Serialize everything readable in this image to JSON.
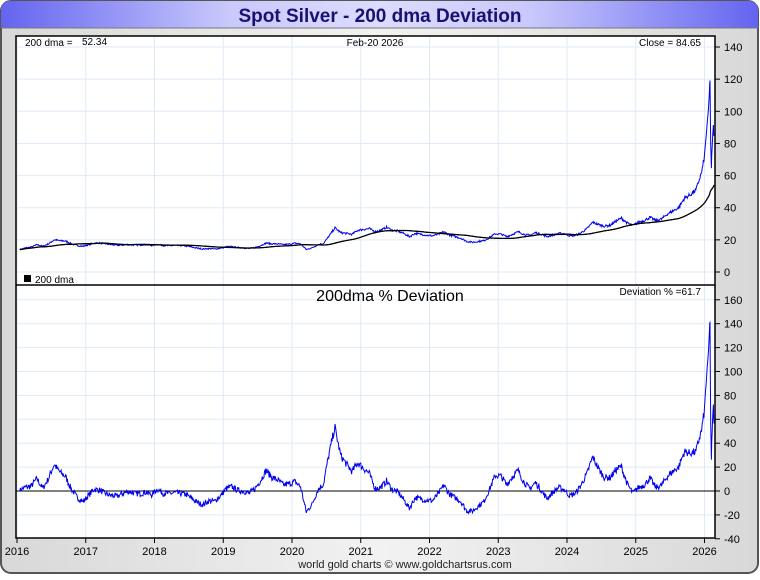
{
  "chart_data": [
    {
      "type": "line",
      "title": "Spot Silver - 200 dma Deviation",
      "header": {
        "dma_label": "200 dma =",
        "dma_value": "52.34",
        "date": "Feb-20  2026",
        "close_label": "Close = 84.65"
      },
      "legend": {
        "label": "200 dma",
        "placement": "bottom-left"
      },
      "ylim": [
        -5,
        147
      ],
      "yticks": [
        "140",
        "120",
        "100",
        "80",
        "60",
        "40",
        "20",
        "0"
      ],
      "ytick_values": [
        140,
        120,
        100,
        80,
        60,
        40,
        20,
        0
      ],
      "grid": true,
      "series": [
        {
          "name": "Spot Silver",
          "color": "#0000ee"
        },
        {
          "name": "200 dma",
          "color": "#000000"
        }
      ],
      "monthly_start_year": 2016,
      "monthly_close": [
        14.0,
        15.0,
        15.5,
        17.0,
        16.0,
        17.5,
        20.0,
        19.5,
        19.2,
        17.5,
        16.5,
        16.0,
        17.0,
        18.0,
        18.0,
        17.5,
        17.0,
        16.6,
        16.8,
        17.0,
        16.8,
        16.8,
        17.0,
        16.5,
        17.2,
        16.5,
        16.4,
        16.5,
        16.4,
        16.2,
        15.5,
        14.8,
        14.3,
        14.6,
        14.3,
        14.8,
        15.6,
        15.8,
        15.2,
        15.0,
        14.6,
        15.2,
        16.4,
        18.0,
        17.5,
        17.5,
        17.0,
        17.3,
        17.9,
        17.5,
        14.0,
        15.0,
        17.0,
        17.8,
        22.5,
        27.5,
        24.5,
        24.0,
        23.5,
        26.0,
        26.5,
        27.0,
        25.0,
        26.0,
        27.8,
        26.0,
        25.5,
        24.0,
        22.0,
        24.0,
        23.5,
        22.8,
        22.5,
        23.5,
        25.0,
        23.0,
        22.0,
        21.0,
        19.0,
        18.5,
        19.0,
        19.5,
        21.5,
        23.8,
        23.5,
        22.0,
        23.5,
        25.0,
        23.5,
        22.8,
        24.5,
        23.5,
        22.0,
        23.0,
        24.0,
        23.8,
        22.5,
        22.8,
        24.5,
        27.0,
        31.0,
        29.5,
        28.5,
        29.0,
        31.5,
        33.5,
        30.5,
        29.0,
        31.0,
        32.0,
        34.0,
        32.0,
        33.0,
        36.0,
        38.0,
        40.0,
        46.0,
        48.0,
        51.0,
        62.0
      ],
      "recent_points": [
        [
          2026.0,
          72
        ],
        [
          2026.03,
          88
        ],
        [
          2026.05,
          95
        ],
        [
          2026.07,
          110
        ],
        [
          2026.08,
          121
        ],
        [
          2026.09,
          80
        ],
        [
          2026.1,
          64
        ],
        [
          2026.11,
          78
        ],
        [
          2026.13,
          90
        ],
        [
          2026.14,
          84.65
        ]
      ]
    },
    {
      "type": "line",
      "title": "200dma  %  Deviation",
      "readout": "Deviation % =61.7",
      "ylim": [
        -40,
        160
      ],
      "yticks": [
        "160",
        "140",
        "120",
        "100",
        "80",
        "60",
        "40",
        "20",
        "0",
        "-20",
        "-40"
      ],
      "ytick_values": [
        160,
        140,
        120,
        100,
        80,
        60,
        40,
        20,
        0,
        -20,
        -40
      ],
      "xticks": [
        "2016",
        "2017",
        "2018",
        "2019",
        "2020",
        "2021",
        "2022",
        "2023",
        "2024",
        "2025",
        "2026"
      ],
      "xtick_values": [
        2016,
        2017,
        2018,
        2019,
        2020,
        2021,
        2022,
        2023,
        2024,
        2025,
        2026
      ],
      "series": [
        {
          "name": "Deviation %",
          "color": "#0000ee"
        }
      ]
    }
  ],
  "footer": "world gold charts © www.goldchartsrus.com"
}
